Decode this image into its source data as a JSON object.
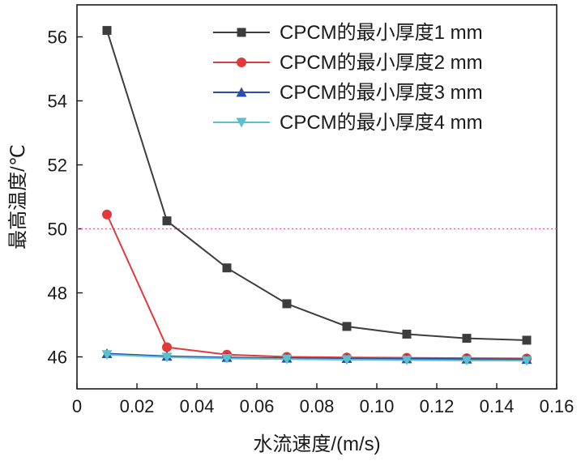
{
  "chart_data": {
    "type": "line",
    "title": "",
    "xlabel": "水流速度/(m/s)",
    "ylabel": "最高温度/℃",
    "xlim": [
      0,
      0.16
    ],
    "ylim": [
      45,
      57
    ],
    "x_ticks": [
      0,
      0.02,
      0.04,
      0.06,
      0.08,
      0.1,
      0.12,
      0.14,
      0.16
    ],
    "x_tick_labels": [
      "0",
      "0.02",
      "0.04",
      "0.06",
      "0.08",
      "0.10",
      "0.12",
      "0.14",
      "0.16"
    ],
    "y_ticks": [
      46,
      48,
      50,
      52,
      54,
      56
    ],
    "y_tick_labels": [
      "46",
      "48",
      "50",
      "52",
      "54",
      "56"
    ],
    "grid": false,
    "legend_position": "top-right",
    "reference_line": {
      "y": 50,
      "color": "#e0559a",
      "style": "dotted"
    },
    "x": [
      0.01,
      0.03,
      0.05,
      0.07,
      0.09,
      0.11,
      0.13,
      0.15
    ],
    "series": [
      {
        "name": "CPCM的最小厚度1 mm",
        "color": "#3d3d3d",
        "marker": "square",
        "values": [
          56.2,
          50.25,
          48.78,
          47.66,
          46.95,
          46.71,
          46.58,
          46.52
        ]
      },
      {
        "name": "CPCM的最小厚度2 mm",
        "color": "#e03a3a",
        "marker": "circle",
        "values": [
          50.45,
          46.3,
          46.07,
          46.0,
          45.98,
          45.97,
          45.96,
          45.95
        ]
      },
      {
        "name": "CPCM的最小厚度3 mm",
        "color": "#2a4fa8",
        "marker": "triangle-up",
        "values": [
          46.1,
          46.02,
          45.98,
          45.96,
          45.95,
          45.94,
          45.93,
          45.92
        ]
      },
      {
        "name": "CPCM的最小厚度4 mm",
        "color": "#5bc0cc",
        "marker": "triangle-down",
        "values": [
          46.07,
          45.99,
          45.95,
          45.93,
          45.91,
          45.9,
          45.89,
          45.88
        ]
      }
    ]
  }
}
